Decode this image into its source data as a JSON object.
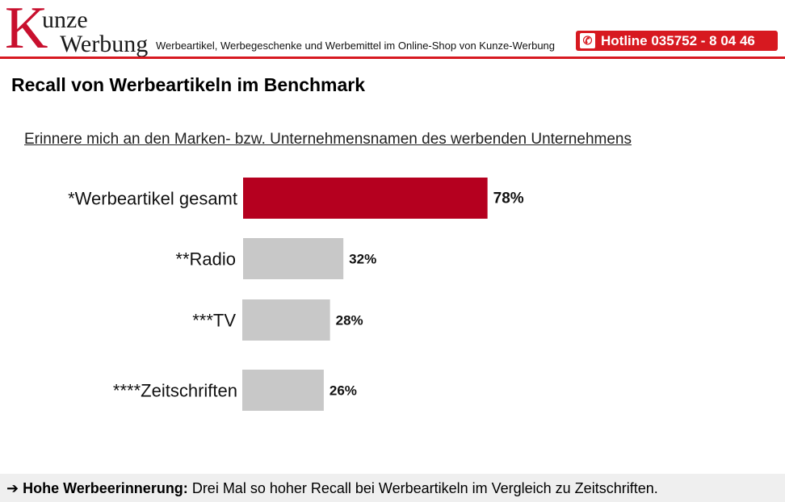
{
  "header": {
    "logo_initial": "K",
    "logo_line1": "unze",
    "logo_line2": "Werbung",
    "tagline": "Werbeartikel, Werbegeschenke und Werbemittel im Online-Shop von Kunze-Werbung",
    "hotline": "Hotline 035752 - 8 04 46",
    "brand_color": "#d71920"
  },
  "title": "Recall von Werbeartikeln im Benchmark",
  "subtitle": "Erinnere mich an den Marken- bzw. Unternehmensnamen des werbenden Unternehmens",
  "chart_data": {
    "type": "bar",
    "orientation": "horizontal",
    "title": "Recall von Werbeartikeln im Benchmark",
    "subtitle": "Erinnere mich an den Marken- bzw. Unternehmensnamen des werbenden Unternehmens",
    "categories": [
      "*Werbeartikel gesamt",
      "**Radio",
      "***TV",
      "****Zeitschriften"
    ],
    "values": [
      78,
      32,
      28,
      26
    ],
    "value_labels": [
      "78%",
      "32%",
      "28%",
      "26%"
    ],
    "colors": [
      "#b5001f",
      "#c8c8c8",
      "#c8c8c8",
      "#c8c8c8"
    ],
    "xlim": [
      0,
      100
    ],
    "grid": false,
    "legend": "none"
  },
  "footer": {
    "arrow": "➔",
    "bold": "Hohe Werbeerinnerung:",
    "text": " Drei Mal so hoher Recall bei Werbeartikeln im Vergleich zu Zeitschriften."
  }
}
